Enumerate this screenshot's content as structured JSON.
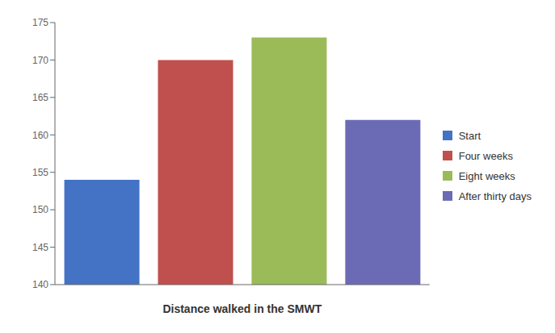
{
  "chart_data": {
    "type": "bar",
    "xlabel": "Distance walked in the SMWT",
    "categories": [
      "Start",
      "Four weeks",
      "Eight weeks",
      "After thirty days"
    ],
    "values": [
      154,
      170,
      173,
      162
    ],
    "colors": [
      "#4472c4",
      "#c0504d",
      "#9bbb59",
      "#6b6bb5"
    ],
    "ylim": [
      140,
      175
    ],
    "yticks": [
      140,
      145,
      150,
      155,
      160,
      165,
      170,
      175
    ],
    "tick_labels": "y",
    "legend": "right",
    "grid": false
  }
}
